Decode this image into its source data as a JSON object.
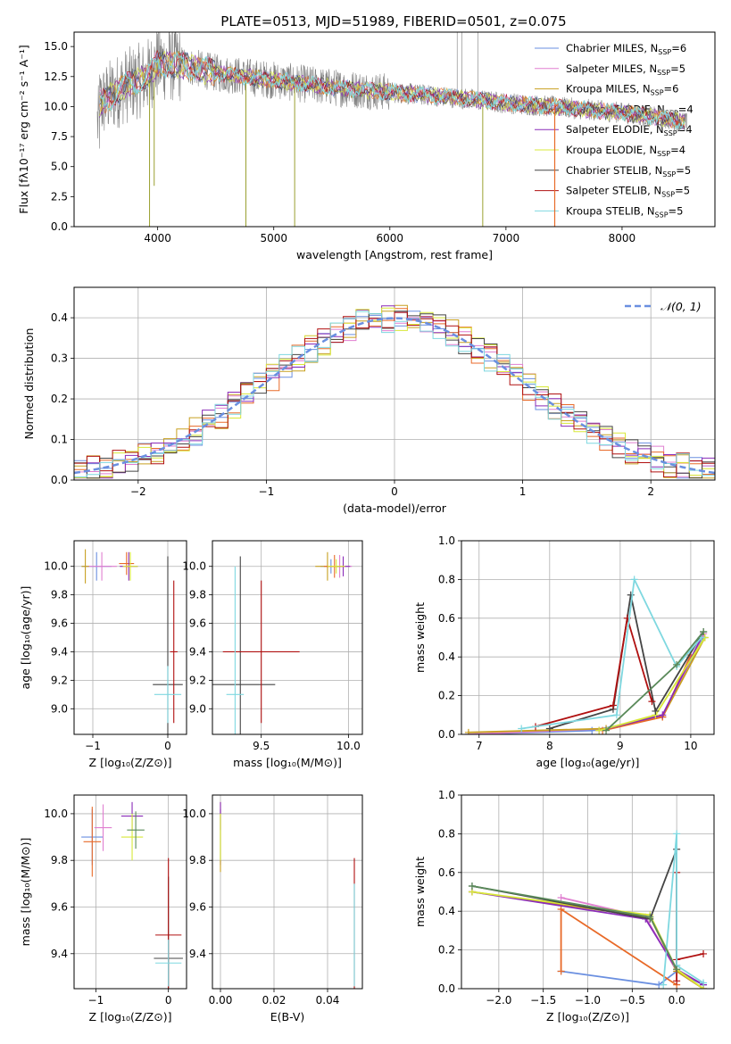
{
  "figure_title": "PLATE=0513, MJD=51989, FIBERID=0501, z=0.075",
  "legend_top": [
    {
      "label": "Chabrier MILES, N",
      "sub": "SSP",
      "suffix": "=6",
      "color": "#6a8fe0"
    },
    {
      "label": "Salpeter MILES, N",
      "sub": "SSP",
      "suffix": "=5",
      "color": "#e07fd0"
    },
    {
      "label": "Kroupa MILES, N",
      "sub": "SSP",
      "suffix": "=6",
      "color": "#c8a020"
    },
    {
      "label": "Chabrier ELODIE, N",
      "sub": "SSP",
      "suffix": "=4",
      "color": "#e86a28"
    },
    {
      "label": "Salpeter ELODIE, N",
      "sub": "SSP",
      "suffix": "=4",
      "color": "#8a2bb8"
    },
    {
      "label": "Kroupa ELODIE, N",
      "sub": "SSP",
      "suffix": "=4",
      "color": "#d8e838"
    },
    {
      "label": "Chabrier STELIB, N",
      "sub": "SSP",
      "suffix": "=5",
      "color": "#444444"
    },
    {
      "label": "Salpeter STELIB, N",
      "sub": "SSP",
      "suffix": "=5",
      "color": "#b01010"
    },
    {
      "label": "Kroupa STELIB, N",
      "sub": "SSP",
      "suffix": "=5",
      "color": "#7fd8e0"
    }
  ],
  "legend_hist": {
    "label": "𝒩(0, 1)",
    "color": "#6a8fe0"
  },
  "chart_data": [
    {
      "id": "spectrum",
      "type": "line",
      "title": "PLATE=0513, MJD=51989, FIBERID=0501, z=0.075",
      "xlabel": "wavelength [Angstrom, rest frame]",
      "ylabel": "Flux [fλ10⁻¹⁷ erg cm⁻² s⁻¹ A⁻¹]",
      "xlim": [
        3280,
        8800
      ],
      "ylim": [
        0,
        16.2
      ],
      "xticks": [
        4000,
        5000,
        6000,
        7000,
        8000
      ],
      "yticks": [
        0.0,
        2.5,
        5.0,
        7.5,
        10.0,
        12.5,
        15.0
      ],
      "continuum": [
        [
          3500,
          10.2
        ],
        [
          3700,
          11.6
        ],
        [
          3900,
          12.4
        ],
        [
          4000,
          13.6
        ],
        [
          4200,
          13.5
        ],
        [
          4500,
          12.8
        ],
        [
          5000,
          12.2
        ],
        [
          5500,
          11.6
        ],
        [
          6000,
          11.2
        ],
        [
          6500,
          10.8
        ],
        [
          7000,
          10.3
        ],
        [
          7400,
          10.0
        ],
        [
          8000,
          9.5
        ],
        [
          8500,
          8.8
        ],
        [
          8550,
          8.6
        ]
      ],
      "data_xrange": [
        3480,
        8560
      ],
      "data_color": "#808080",
      "model_color": "#7fd8e0",
      "deep_lines": [
        [
          3930,
          0
        ],
        [
          3970,
          3.4
        ],
        [
          4760,
          0
        ],
        [
          5180,
          0
        ],
        [
          6800,
          0
        ],
        [
          7420,
          0
        ]
      ],
      "grid": false,
      "legend_position": "upper right"
    },
    {
      "id": "hist",
      "type": "histogram",
      "xlabel": "(data-model)/error",
      "ylabel": "Normed distribution",
      "xlim": [
        -2.5,
        2.5
      ],
      "ylim": [
        0,
        0.475
      ],
      "xticks": [
        -2,
        -1,
        0,
        1,
        2
      ],
      "yticks": [
        0.0,
        0.1,
        0.2,
        0.3,
        0.4
      ],
      "bin_width": 0.1,
      "curve": "normal(0,1)",
      "grid": true,
      "legend_position": "upper right"
    },
    {
      "id": "age_Z",
      "type": "errorbar",
      "xlabel": "Z [log₁₀(Z/Z⊙)]",
      "ylabel": "age  [log₁₀(age/yr)]",
      "xlim": [
        -1.25,
        0.25
      ],
      "ylim": [
        8.82,
        10.18
      ],
      "xticks": [
        -1,
        0
      ],
      "yticks": [
        9.0,
        9.2,
        9.4,
        9.6,
        9.8,
        10.0
      ],
      "points": [
        {
          "x": -0.95,
          "y": 10.0,
          "xerr": 0.2,
          "yerr": 0.1,
          "color": "#6a8fe0"
        },
        {
          "x": -0.88,
          "y": 10.0,
          "xerr": 0.2,
          "yerr": 0.1,
          "color": "#e07fd0"
        },
        {
          "x": -1.1,
          "y": 10.0,
          "xerr": 0.05,
          "yerr": 0.12,
          "color": "#c8a020"
        },
        {
          "x": -0.55,
          "y": 10.02,
          "xerr": 0.1,
          "yerr": 0.08,
          "color": "#e86a28"
        },
        {
          "x": -0.52,
          "y": 10.0,
          "xerr": 0.12,
          "yerr": 0.1,
          "color": "#8a2bb8"
        },
        {
          "x": -0.5,
          "y": 10.0,
          "xerr": 0.1,
          "yerr": 0.1,
          "color": "#d8e838"
        },
        {
          "x": 0.0,
          "y": 9.17,
          "xerr": 0.2,
          "yerr": 0.9,
          "color": "#444444"
        },
        {
          "x": 0.08,
          "y": 9.4,
          "xerr": 0.05,
          "yerr": 0.5,
          "color": "#b01010"
        },
        {
          "x": 0.0,
          "y": 9.1,
          "xerr": 0.18,
          "yerr": 0.2,
          "color": "#7fd8e0"
        }
      ],
      "grid": true
    },
    {
      "id": "age_mass",
      "type": "errorbar",
      "xlabel": "mass [log₁₀(M/M⊙)]",
      "ylabel": "",
      "xlim": [
        9.22,
        10.08
      ],
      "ylim": [
        8.82,
        10.18
      ],
      "xticks": [
        9.5,
        10.0
      ],
      "yticks": [
        9.0,
        9.2,
        9.4,
        9.6,
        9.8,
        10.0
      ],
      "points": [
        {
          "x": 9.9,
          "y": 10.0,
          "xerr": 0.06,
          "yerr": 0.05,
          "color": "#6a8fe0"
        },
        {
          "x": 9.95,
          "y": 10.0,
          "xerr": 0.07,
          "yerr": 0.08,
          "color": "#e07fd0"
        },
        {
          "x": 9.88,
          "y": 10.0,
          "xerr": 0.07,
          "yerr": 0.1,
          "color": "#c8a020"
        },
        {
          "x": 9.92,
          "y": 10.0,
          "xerr": 0.06,
          "yerr": 0.08,
          "color": "#e86a28"
        },
        {
          "x": 9.97,
          "y": 10.0,
          "xerr": 0.04,
          "yerr": 0.07,
          "color": "#8a2bb8"
        },
        {
          "x": 9.93,
          "y": 10.0,
          "xerr": 0.05,
          "yerr": 0.05,
          "color": "#d8e838"
        },
        {
          "x": 9.38,
          "y": 9.17,
          "xerr": 0.2,
          "yerr": 0.9,
          "color": "#444444"
        },
        {
          "x": 9.5,
          "y": 9.4,
          "xerr": 0.22,
          "yerr": 0.5,
          "color": "#b01010"
        },
        {
          "x": 9.35,
          "y": 9.1,
          "xerr": 0.05,
          "yerr": 0.9,
          "color": "#7fd8e0"
        }
      ],
      "grid": true
    },
    {
      "id": "weight_age",
      "type": "line",
      "xlabel": "age  [log₁₀(age/yr)]",
      "ylabel": "mass weight",
      "xlim": [
        6.75,
        10.33
      ],
      "ylim": [
        0,
        1.0
      ],
      "xticks": [
        7,
        8,
        9,
        10
      ],
      "yticks": [
        0.0,
        0.2,
        0.4,
        0.6,
        0.8,
        1.0
      ],
      "series": [
        {
          "color": "#6a8fe0",
          "x": [
            6.85,
            8.6,
            9.6,
            10.18
          ],
          "y": [
            0.0,
            0.02,
            0.09,
            0.5
          ]
        },
        {
          "color": "#e07fd0",
          "x": [
            6.85,
            8.8,
            9.6,
            10.18
          ],
          "y": [
            0.0,
            0.03,
            0.09,
            0.52
          ]
        },
        {
          "color": "#c8a020",
          "x": [
            6.85,
            8.8,
            9.6,
            10.2
          ],
          "y": [
            0.01,
            0.03,
            0.09,
            0.5
          ]
        },
        {
          "color": "#e86a28",
          "x": [
            8.75,
            9.6,
            10.0
          ],
          "y": [
            0.02,
            0.09,
            0.41
          ]
        },
        {
          "color": "#8a2bb8",
          "x": [
            8.7,
            9.6,
            10.15
          ],
          "y": [
            0.02,
            0.1,
            0.5
          ]
        },
        {
          "color": "#d8e838",
          "x": [
            8.7,
            9.5,
            10.2
          ],
          "y": [
            0.02,
            0.1,
            0.5
          ]
        },
        {
          "color": "#444444",
          "x": [
            8.0,
            8.9,
            9.15,
            9.5,
            10.18
          ],
          "y": [
            0.03,
            0.13,
            0.72,
            0.12,
            0.53
          ]
        },
        {
          "color": "#b01010",
          "x": [
            7.8,
            8.9,
            9.1,
            9.45
          ],
          "y": [
            0.04,
            0.15,
            0.6,
            0.17
          ]
        },
        {
          "color": "#7fd8e0",
          "x": [
            7.6,
            8.95,
            9.2,
            9.8,
            10.15
          ],
          "y": [
            0.03,
            0.1,
            0.8,
            0.35,
            0.5
          ]
        },
        {
          "color": "#5a8a5a",
          "x": [
            8.8,
            9.8,
            10.18
          ],
          "y": [
            0.02,
            0.36,
            0.53
          ]
        }
      ],
      "grid": true
    },
    {
      "id": "mass_Z",
      "type": "errorbar",
      "xlabel": "Z [log₁₀(Z/Z⊙)]",
      "ylabel": "mass [log₁₀(M/M⊙)]",
      "xlim": [
        -1.3,
        0.25
      ],
      "ylim": [
        9.25,
        10.08
      ],
      "xticks": [
        -1,
        0
      ],
      "yticks": [
        9.4,
        9.6,
        9.8,
        10.0
      ],
      "points": [
        {
          "x": -1.05,
          "y": 9.9,
          "xerr": 0.15,
          "yerr": 0.12,
          "color": "#6a8fe0"
        },
        {
          "x": -0.9,
          "y": 9.94,
          "xerr": 0.12,
          "yerr": 0.1,
          "color": "#e07fd0"
        },
        {
          "x": -1.05,
          "y": 9.88,
          "xerr": 0.12,
          "yerr": 0.15,
          "color": "#e86a28"
        },
        {
          "x": -0.5,
          "y": 9.99,
          "xerr": 0.15,
          "yerr": 0.06,
          "color": "#8a2bb8"
        },
        {
          "x": -0.5,
          "y": 9.9,
          "xerr": 0.15,
          "yerr": 0.1,
          "color": "#d8e838"
        },
        {
          "x": -0.45,
          "y": 9.93,
          "xerr": 0.12,
          "yerr": 0.08,
          "color": "#5a8a5a"
        },
        {
          "x": 0.0,
          "y": 9.38,
          "xerr": 0.2,
          "yerr": 0.35,
          "color": "#444444"
        },
        {
          "x": 0.0,
          "y": 9.48,
          "xerr": 0.18,
          "yerr": 0.33,
          "color": "#b01010"
        },
        {
          "x": 0.0,
          "y": 9.36,
          "xerr": 0.18,
          "yerr": 0.1,
          "color": "#7fd8e0"
        }
      ],
      "grid": true
    },
    {
      "id": "mass_EBV",
      "type": "errorbar",
      "xlabel": "E(B-V)",
      "ylabel": "",
      "xlim": [
        -0.003,
        0.053
      ],
      "ylim": [
        9.25,
        10.08
      ],
      "xticks": [
        0.0,
        0.02,
        0.04
      ],
      "yticks": [
        9.4,
        9.6,
        9.8,
        10.0
      ],
      "points": [
        {
          "x": 0.0,
          "y": 9.9,
          "xerr": 0,
          "yerr": 0.12,
          "color": "#6a8fe0"
        },
        {
          "x": 0.0,
          "y": 9.9,
          "xerr": 0,
          "yerr": 0.12,
          "color": "#e07fd0"
        },
        {
          "x": 0.0,
          "y": 9.9,
          "xerr": 0,
          "yerr": 0.15,
          "color": "#c8a020"
        },
        {
          "x": 0.0,
          "y": 9.99,
          "xerr": 0,
          "yerr": 0.06,
          "color": "#8a2bb8"
        },
        {
          "x": 0.0,
          "y": 9.9,
          "xerr": 0,
          "yerr": 0.1,
          "color": "#d8e838"
        },
        {
          "x": 0.05,
          "y": 9.48,
          "xerr": 0,
          "yerr": 0.33,
          "color": "#b01010"
        },
        {
          "x": 0.05,
          "y": 9.48,
          "xerr": 0,
          "yerr": 0.22,
          "color": "#7fd8e0"
        }
      ],
      "grid": true
    },
    {
      "id": "weight_Z",
      "type": "line",
      "xlabel": "Z [log₁₀(Z/Z⊙)]",
      "ylabel": "mass weight",
      "xlim": [
        -2.42,
        0.42
      ],
      "ylim": [
        0,
        1.0
      ],
      "xticks": [
        -2.0,
        -1.5,
        -1.0,
        -0.5,
        0.0
      ],
      "yticks": [
        0.0,
        0.2,
        0.4,
        0.6,
        0.8,
        1.0
      ],
      "series": [
        {
          "color": "#6a8fe0",
          "x": [
            -1.3,
            -0.2,
            0.0,
            0.3
          ],
          "y": [
            0.09,
            0.02,
            0.09,
            0.02
          ]
        },
        {
          "color": "#e07fd0",
          "x": [
            -1.3,
            -0.35,
            0.0,
            0.3
          ],
          "y": [
            0.47,
            0.37,
            0.09,
            0.0
          ]
        },
        {
          "color": "#c8a020",
          "x": [
            -2.3,
            -0.3,
            0.0,
            0.3
          ],
          "y": [
            0.5,
            0.37,
            0.09,
            0.0
          ]
        },
        {
          "color": "#e86a28",
          "x": [
            -1.3,
            -1.3,
            0.0
          ],
          "y": [
            0.09,
            0.41,
            0.02
          ]
        },
        {
          "color": "#8a2bb8",
          "x": [
            -2.3,
            -0.35,
            0.0,
            0.3
          ],
          "y": [
            0.5,
            0.36,
            0.1,
            0.02
          ]
        },
        {
          "color": "#d8e838",
          "x": [
            -2.3,
            -0.3,
            0.0,
            0.3
          ],
          "y": [
            0.5,
            0.38,
            0.1,
            0.0
          ]
        },
        {
          "color": "#444444",
          "x": [
            -2.3,
            -0.3,
            0.0,
            0.0
          ],
          "y": [
            0.53,
            0.36,
            0.72,
            0.12
          ]
        },
        {
          "color": "#b01010",
          "x": [
            0.0,
            0.0,
            0.0,
            0.3
          ],
          "y": [
            0.6,
            0.04,
            0.15,
            0.18
          ]
        },
        {
          "color": "#7fd8e0",
          "x": [
            -0.15,
            0.0,
            0.0,
            0.3
          ],
          "y": [
            0.02,
            0.8,
            0.12,
            0.03
          ]
        },
        {
          "color": "#5a8a5a",
          "x": [
            -2.3,
            -0.3,
            0.0
          ],
          "y": [
            0.53,
            0.37,
            0.1
          ]
        }
      ],
      "grid": true
    }
  ]
}
